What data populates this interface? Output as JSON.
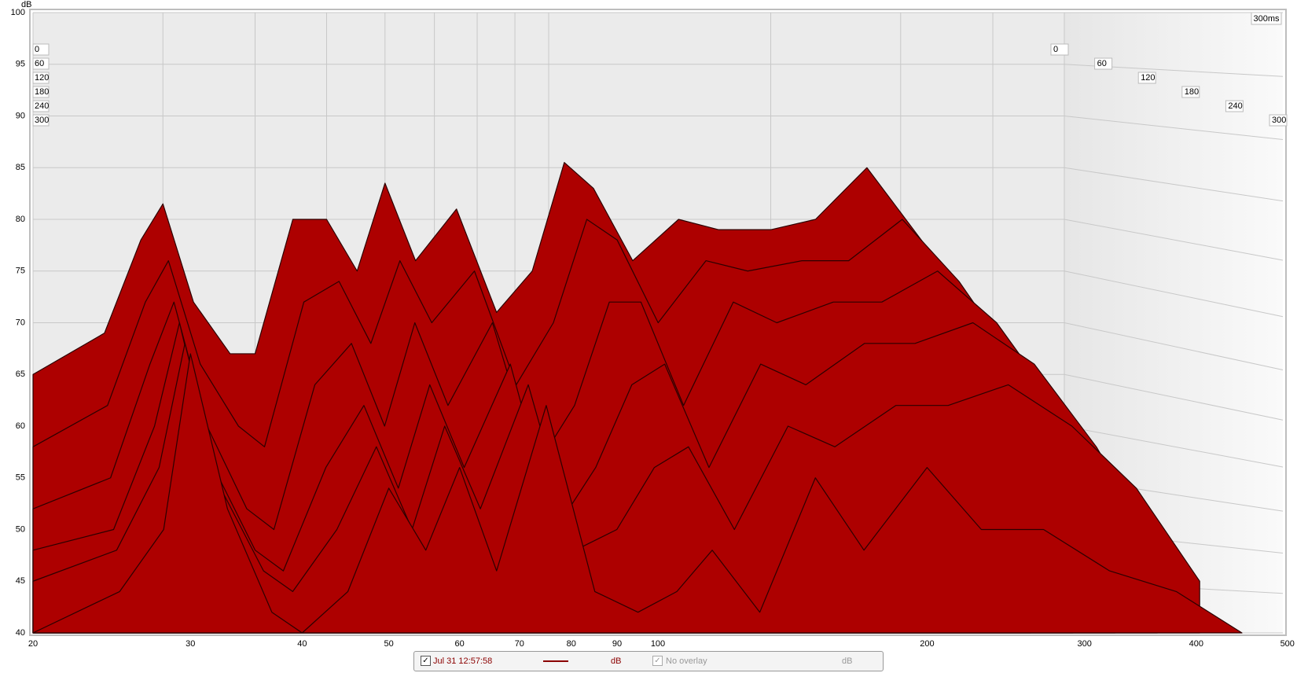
{
  "chart_data": {
    "type": "waterfall",
    "ylabel": "dB",
    "time_label": "300ms",
    "x": [
      20,
      25,
      28,
      30,
      33,
      37,
      40,
      45,
      50,
      55,
      60,
      66,
      75,
      85,
      95,
      105,
      115,
      130,
      150,
      170,
      200,
      230,
      270,
      320,
      380,
      450
    ],
    "series": [
      {
        "t": 0,
        "values": [
          65,
          69,
          78,
          81.5,
          72,
          67,
          67,
          80,
          80,
          75,
          83.5,
          76,
          81,
          71,
          75,
          85.5,
          83,
          76,
          80,
          79,
          79,
          80,
          85,
          78,
          70,
          60
        ]
      },
      {
        "t": 60,
        "values": [
          58,
          62,
          72,
          76,
          66,
          60,
          58,
          72,
          74,
          68,
          76,
          70,
          75,
          64,
          70,
          80,
          78,
          70,
          76,
          75,
          76,
          76,
          80,
          74,
          66,
          56
        ]
      },
      {
        "t": 120,
        "values": [
          52,
          55,
          66,
          72,
          60,
          52,
          50,
          64,
          68,
          60,
          70,
          62,
          70,
          56,
          62,
          72,
          72,
          62,
          72,
          70,
          72,
          72,
          75,
          70,
          62,
          52
        ]
      },
      {
        "t": 180,
        "values": [
          48,
          50,
          60,
          70,
          56,
          48,
          46,
          56,
          62,
          54,
          64,
          56,
          66,
          50,
          56,
          64,
          66,
          56,
          66,
          64,
          68,
          68,
          70,
          66,
          58,
          48
        ]
      },
      {
        "t": 240,
        "values": [
          45,
          48,
          56,
          68,
          54,
          46,
          44,
          50,
          58,
          50,
          60,
          52,
          64,
          48,
          50,
          56,
          58,
          50,
          60,
          58,
          62,
          62,
          64,
          60,
          54,
          45
        ]
      },
      {
        "t": 300,
        "values": [
          40,
          44,
          50,
          67,
          52,
          42,
          40,
          44,
          54,
          48,
          56,
          46,
          62,
          44,
          42,
          44,
          48,
          42,
          55,
          48,
          56,
          50,
          50,
          46,
          44,
          40
        ]
      }
    ],
    "color": "#ad0000",
    "edge_color": "#2b0000",
    "xlim": [
      20,
      500
    ],
    "log_x": true,
    "xticks": [
      20,
      30,
      40,
      50,
      60,
      70,
      80,
      90,
      100,
      200,
      300,
      400,
      {
        "value": 500,
        "label": "500 Hz"
      }
    ],
    "ylim": [
      40,
      100
    ],
    "yticks": [
      40,
      45,
      50,
      55,
      60,
      65,
      70,
      75,
      80,
      85,
      90,
      95,
      100
    ],
    "zlim": [
      0,
      300
    ],
    "zticks": [
      0,
      60,
      120,
      180,
      240,
      300
    ],
    "grid": true
  },
  "legend": {
    "measurement": "Jul 31 12:57:58",
    "measurement_unit": "dB",
    "overlay": "No overlay",
    "overlay_unit": "dB"
  }
}
